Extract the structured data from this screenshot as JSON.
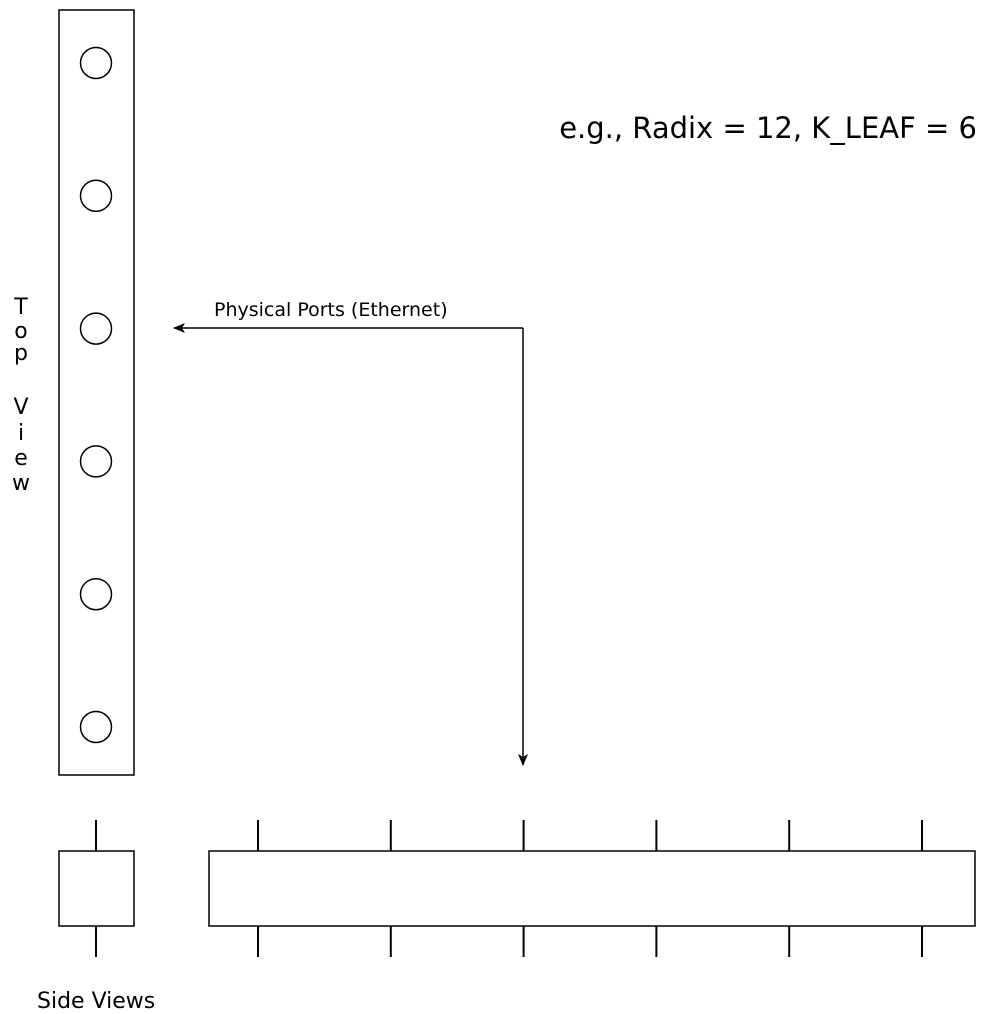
{
  "diagram": {
    "formula_label": "e.g., Radix = 12, K_LEAF = 6",
    "ports_label": "Physical Ports (Ethernet)",
    "top_view_label": [
      "T",
      "o",
      "p",
      "V",
      "i",
      "e",
      "w"
    ],
    "side_views_label": "Side Views",
    "port_count": 6,
    "colors": {
      "stroke": "#000000",
      "background": "#ffffff"
    }
  }
}
